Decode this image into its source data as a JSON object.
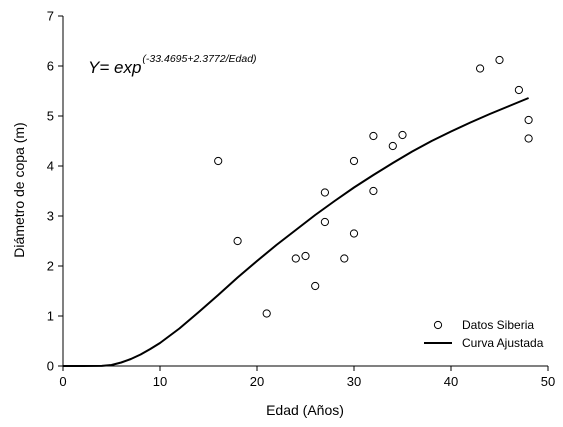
{
  "chart_data": {
    "type": "scatter",
    "xlabel": "Edad (Años)",
    "ylabel": "Diámetro de copa (m)",
    "xlim": [
      0,
      50
    ],
    "ylim": [
      0,
      7
    ],
    "xticks": [
      0,
      10,
      20,
      30,
      40,
      50
    ],
    "yticks": [
      0,
      1,
      2,
      3,
      4,
      5,
      6,
      7
    ],
    "grid": false,
    "legend_position": "bottom-right",
    "annotation": {
      "base": "Y= exp",
      "exponent": "(-33.4695+2.3772/Edad)"
    },
    "series": [
      {
        "name": "Datos Siberia",
        "kind": "points",
        "marker": "open-circle",
        "color": "#000000",
        "points": [
          [
            16,
            4.1
          ],
          [
            18,
            2.5
          ],
          [
            21,
            1.05
          ],
          [
            24,
            2.15
          ],
          [
            25,
            2.2
          ],
          [
            26,
            1.6
          ],
          [
            27,
            3.47
          ],
          [
            27,
            2.88
          ],
          [
            29,
            2.15
          ],
          [
            30,
            4.1
          ],
          [
            30,
            2.65
          ],
          [
            32,
            4.6
          ],
          [
            32,
            3.5
          ],
          [
            34,
            4.4
          ],
          [
            35,
            4.62
          ],
          [
            43,
            5.95
          ],
          [
            45,
            6.12
          ],
          [
            47,
            5.52
          ],
          [
            48,
            4.92
          ],
          [
            48,
            4.55
          ]
        ]
      },
      {
        "name": "Curva Ajustada",
        "kind": "line",
        "color": "#000000",
        "points": [
          [
            0,
            0
          ],
          [
            2,
            0
          ],
          [
            4,
            0.002
          ],
          [
            5,
            0.02
          ],
          [
            6,
            0.07
          ],
          [
            7,
            0.14
          ],
          [
            8,
            0.23
          ],
          [
            9,
            0.34
          ],
          [
            10,
            0.46
          ],
          [
            12,
            0.75
          ],
          [
            14,
            1.08
          ],
          [
            16,
            1.42
          ],
          [
            18,
            1.77
          ],
          [
            20,
            2.1
          ],
          [
            22,
            2.42
          ],
          [
            24,
            2.72
          ],
          [
            26,
            3.02
          ],
          [
            28,
            3.3
          ],
          [
            30,
            3.57
          ],
          [
            32,
            3.82
          ],
          [
            34,
            4.06
          ],
          [
            36,
            4.29
          ],
          [
            38,
            4.5
          ],
          [
            40,
            4.69
          ],
          [
            42,
            4.87
          ],
          [
            44,
            5.04
          ],
          [
            46,
            5.2
          ],
          [
            48,
            5.36
          ]
        ]
      }
    ]
  }
}
